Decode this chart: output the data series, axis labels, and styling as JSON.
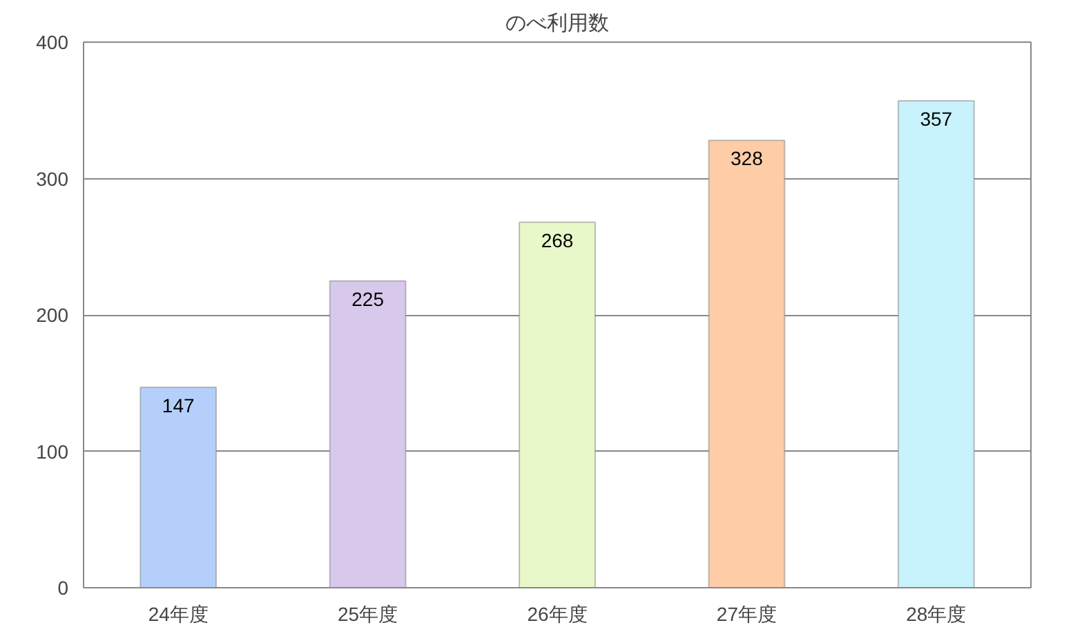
{
  "chart_data": {
    "type": "bar",
    "title": "のべ利用数",
    "categories": [
      "24年度",
      "25年度",
      "26年度",
      "27年度",
      "28年度"
    ],
    "values": [
      147,
      225,
      268,
      328,
      357
    ],
    "colors": [
      "#b4d0fa",
      "#d8c8ec",
      "#e8f8c8",
      "#ffcca8",
      "#c8f2fc"
    ],
    "ylim": [
      0,
      400
    ],
    "yticks": [
      0,
      100,
      200,
      300,
      400
    ],
    "grid": "y",
    "data_labels": true
  }
}
